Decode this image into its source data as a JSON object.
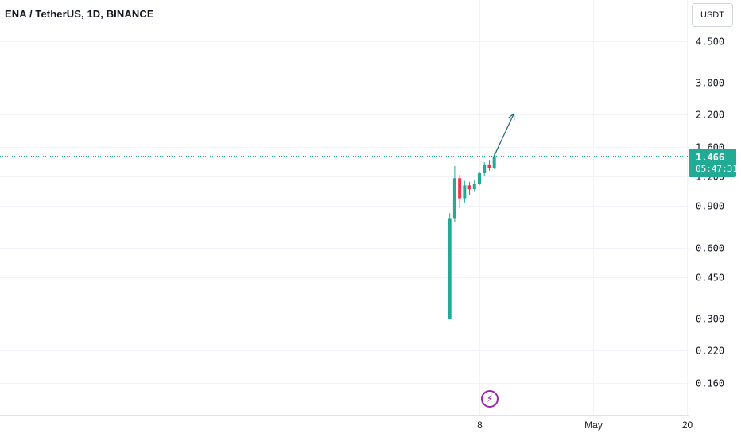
{
  "header": {
    "title": "ENA / TetherUS, 1D, BINANCE",
    "currency": "USDT"
  },
  "price_tag": {
    "price": "1.466",
    "countdown": "05:47:31"
  },
  "colors": {
    "up": "#22ab94",
    "down": "#f23645",
    "arrow": "#1e5f74",
    "grid": "#f0f3fa",
    "last_line": "#22ab94",
    "event": "#9c27b0"
  },
  "icons": {
    "event": "lightning-bolt-icon"
  },
  "chart_data": {
    "type": "candlestick",
    "title": "ENA / TetherUS, 1D, BINANCE",
    "y_scale": "log",
    "y_ticks": [
      {
        "value": 4.5,
        "label": "4.500"
      },
      {
        "value": 3.0,
        "label": "3.000"
      },
      {
        "value": 2.2,
        "label": "2.200"
      },
      {
        "value": 1.6,
        "label": "1.600"
      },
      {
        "value": 1.2,
        "label": "1.200"
      },
      {
        "value": 0.9,
        "label": "0.900"
      },
      {
        "value": 0.6,
        "label": "0.600"
      },
      {
        "value": 0.45,
        "label": "0.450"
      },
      {
        "value": 0.3,
        "label": "0.300"
      },
      {
        "value": 0.22,
        "label": "0.220"
      },
      {
        "value": 0.16,
        "label": "0.160"
      }
    ],
    "x_ticks": [
      {
        "date": "2024-04-08",
        "label": "8"
      },
      {
        "date": "2024-05-01",
        "label": "May"
      },
      {
        "date": "2024-05-20",
        "label": "20"
      }
    ],
    "candles": [
      {
        "date": "2024-04-02",
        "open": 0.3,
        "high": 0.84,
        "low": 0.3,
        "close": 0.8
      },
      {
        "date": "2024-04-03",
        "open": 0.8,
        "high": 1.33,
        "low": 0.77,
        "close": 1.18
      },
      {
        "date": "2024-04-04",
        "open": 1.18,
        "high": 1.22,
        "low": 0.88,
        "close": 0.97
      },
      {
        "date": "2024-04-05",
        "open": 0.97,
        "high": 1.15,
        "low": 0.93,
        "close": 1.1
      },
      {
        "date": "2024-04-06",
        "open": 1.1,
        "high": 1.14,
        "low": 1.0,
        "close": 1.06
      },
      {
        "date": "2024-04-07",
        "open": 1.06,
        "high": 1.16,
        "low": 1.03,
        "close": 1.12
      },
      {
        "date": "2024-04-08",
        "open": 1.12,
        "high": 1.26,
        "low": 1.1,
        "close": 1.24
      },
      {
        "date": "2024-04-09",
        "open": 1.24,
        "high": 1.38,
        "low": 1.2,
        "close": 1.34
      },
      {
        "date": "2024-04-10",
        "open": 1.34,
        "high": 1.4,
        "low": 1.27,
        "close": 1.3
      },
      {
        "date": "2024-04-11",
        "open": 1.3,
        "high": 1.5,
        "low": 1.29,
        "close": 1.466
      }
    ],
    "last_price": 1.466,
    "annotation": {
      "type": "arrow",
      "from": {
        "date": "2024-04-11",
        "value": 1.47
      },
      "to": {
        "date": "2024-04-15",
        "value": 2.22
      }
    },
    "grid": true
  }
}
